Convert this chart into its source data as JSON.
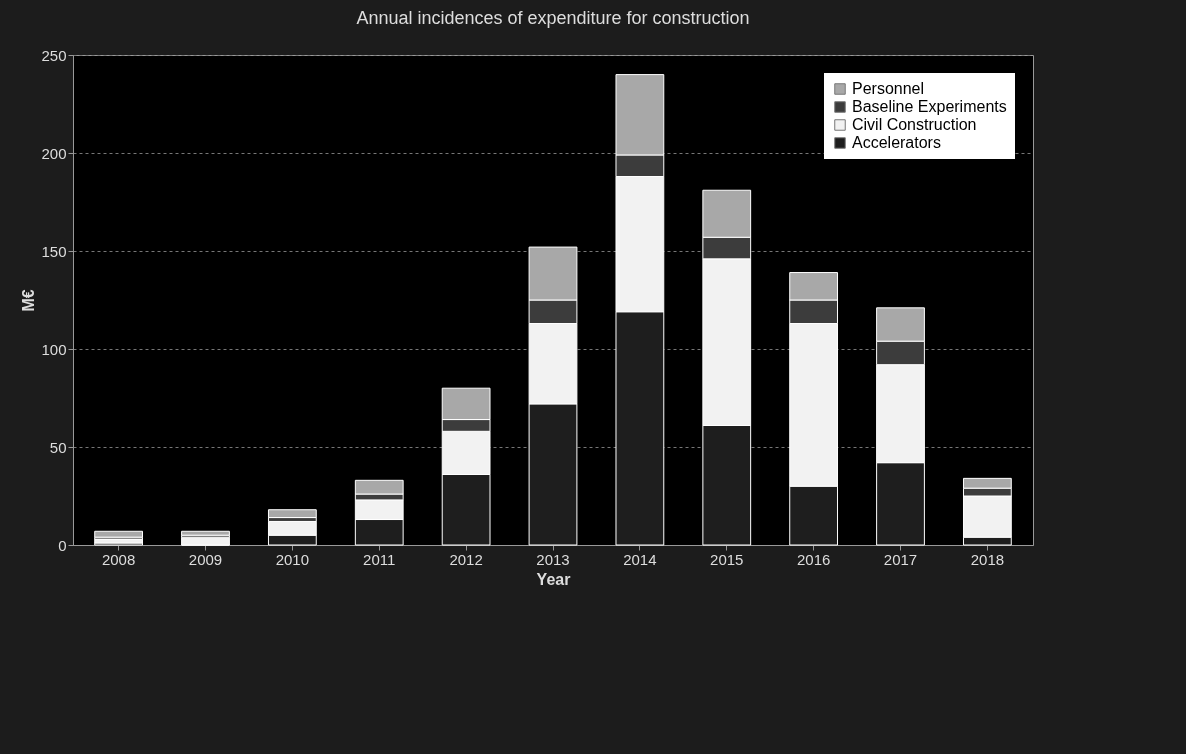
{
  "chart_data": {
    "type": "bar",
    "title": "Annual incidences of expenditure for construction",
    "xlabel": "Year",
    "ylabel": "M€",
    "categories": [
      "2008",
      "2009",
      "2010",
      "2011",
      "2012",
      "2013",
      "2014",
      "2015",
      "2016",
      "2017",
      "2018"
    ],
    "stacked": true,
    "series": [
      {
        "name": "Accelerators",
        "color": "#1e1e1e",
        "values": [
          1,
          0,
          5,
          13,
          36,
          72,
          119,
          61,
          30,
          42,
          4
        ]
      },
      {
        "name": "Civil Construction",
        "color": "#f2f2f2",
        "values": [
          2,
          4,
          7,
          10,
          22,
          41,
          69,
          85,
          83,
          50,
          21
        ]
      },
      {
        "name": "Baseline Experiments",
        "color": "#3c3c3c",
        "values": [
          1,
          1,
          2,
          3,
          6,
          12,
          11,
          11,
          12,
          12,
          4
        ]
      },
      {
        "name": "Personnel",
        "color": "#a8a8a8",
        "values": [
          3,
          2,
          4,
          7,
          16,
          27,
          41,
          24,
          14,
          17,
          5
        ]
      }
    ],
    "ylim": [
      0,
      250
    ],
    "yticks": [
      0,
      50,
      100,
      150,
      200,
      250
    ],
    "grid": "y",
    "legend": "top right"
  }
}
